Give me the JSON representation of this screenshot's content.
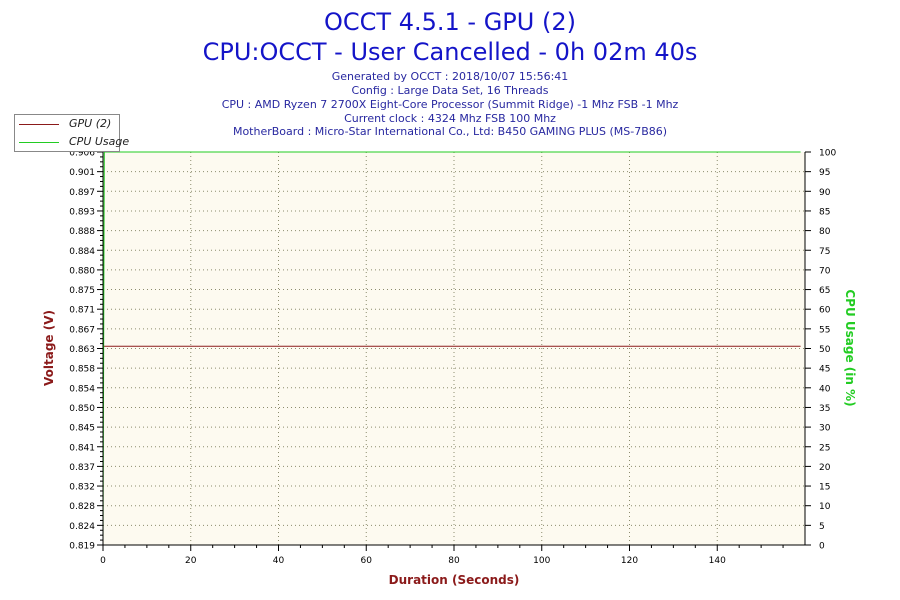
{
  "header": {
    "title": "OCCT 4.5.1 - GPU (2)",
    "subtitle": "CPU:OCCT - User Cancelled - 0h 02m 40s",
    "info_lines": [
      "Generated by OCCT : 2018/10/07 15:56:41",
      "Config : Large Data Set, 16 Threads",
      "CPU : AMD Ryzen 7 2700X Eight-Core Processor (Summit Ridge) -1 Mhz FSB -1 Mhz",
      "Current clock : 4324 Mhz FSB 100 Mhz",
      "MotherBoard : Micro-Star International Co., Ltd: B450 GAMING PLUS (MS-7B86)"
    ]
  },
  "colors": {
    "title": "#1414c8",
    "info": "#2828a0",
    "gpu_series": "#8b1a1a",
    "cpu_series": "#22cc22",
    "axis_label_left": "#8b1a1a",
    "axis_label_bottom": "#8b1a1a",
    "axis_label_right": "#22cc22",
    "plot_bg": "#fdfaf0",
    "grid": "#8c8c6e"
  },
  "chart_data": {
    "type": "line",
    "xlabel": "Duration (Seconds)",
    "ylabel": "Voltage (V)",
    "y2label": "CPU Usage (in %)",
    "xlim": [
      0,
      160
    ],
    "ylim": [
      0.819,
      0.906
    ],
    "y2lim": [
      0,
      100
    ],
    "x_ticks": [
      "0",
      "20",
      "40",
      "60",
      "80",
      "100",
      "120",
      "140"
    ],
    "y_ticks": [
      "0.819",
      "0.824",
      "0.828",
      "0.832",
      "0.837",
      "0.841",
      "0.845",
      "0.850",
      "0.854",
      "0.858",
      "0.863",
      "0.867",
      "0.871",
      "0.875",
      "0.880",
      "0.884",
      "0.888",
      "0.893",
      "0.897",
      "0.901",
      "0.906"
    ],
    "y2_ticks": [
      "0",
      "5",
      "10",
      "15",
      "20",
      "25",
      "30",
      "35",
      "40",
      "45",
      "50",
      "55",
      "60",
      "65",
      "70",
      "75",
      "80",
      "85",
      "90",
      "95",
      "100"
    ],
    "grid": true,
    "legend_position": "top-left",
    "series": [
      {
        "name": "GPU (2)",
        "axis": "left",
        "x": [
          0,
          159
        ],
        "values": [
          0.863,
          0.863
        ]
      },
      {
        "name": "CPU Usage",
        "axis": "right",
        "x": [
          0,
          0.3,
          159
        ],
        "values": [
          0,
          100,
          100
        ]
      }
    ]
  }
}
